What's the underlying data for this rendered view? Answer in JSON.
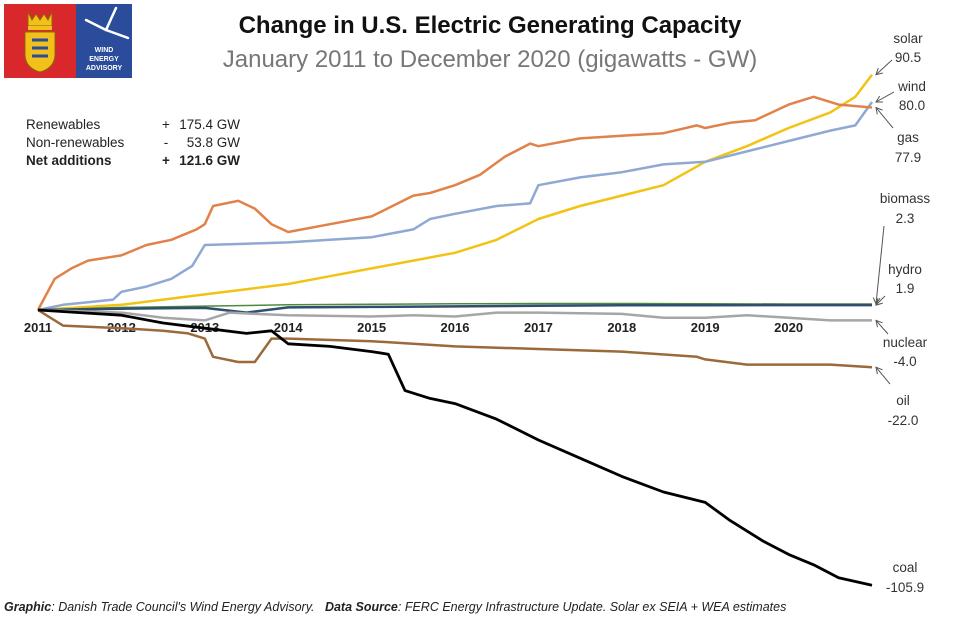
{
  "header": {
    "title": "Change in U.S. Electric Generating Capacity",
    "subtitle": "January 2011 to December 2020 (gigawatts - GW)"
  },
  "logo": {
    "text_lines": [
      "WIND",
      "ENERGY",
      "ADVISORY"
    ]
  },
  "summary": [
    {
      "label": "Renewables",
      "sign": "+",
      "value": "175.4 GW"
    },
    {
      "label": "Non-renewables",
      "sign": "-",
      "value": "53.8 GW"
    },
    {
      "label": "Net additions",
      "sign": "+",
      "value": "121.6  GW"
    }
  ],
  "footer": {
    "graphic_label": "Graphic",
    "graphic_text": ": Danish Trade Council's Wind Energy Advisory.",
    "source_label": "Data Source",
    "source_text": ": FERC Energy Infrastructure Update. Solar ex SEIA + WEA estimates"
  },
  "chart_data": {
    "type": "line",
    "title": "Change in U.S. Electric Generating Capacity",
    "subtitle": "January 2011 to December 2020 (gigawatts - GW)",
    "x_ticks": [
      "2011",
      "2012",
      "2013",
      "2014",
      "2015",
      "2016",
      "2017",
      "2018",
      "2019",
      "2020"
    ],
    "xlim": [
      2011.0,
      2021.0
    ],
    "ylim": [
      -110,
      95
    ],
    "grid": false,
    "legend": "direct labels at right end",
    "series": [
      {
        "name": "solar",
        "end_label": "90.5",
        "color": "#f2c314",
        "width": 2.5,
        "points": [
          [
            2011.0,
            0
          ],
          [
            2011.5,
            1
          ],
          [
            2012.0,
            2
          ],
          [
            2012.5,
            4
          ],
          [
            2013.0,
            6
          ],
          [
            2013.5,
            8
          ],
          [
            2014.0,
            10
          ],
          [
            2014.5,
            13
          ],
          [
            2015.0,
            16
          ],
          [
            2015.5,
            19
          ],
          [
            2016.0,
            22
          ],
          [
            2016.5,
            27
          ],
          [
            2017.0,
            35
          ],
          [
            2017.5,
            40
          ],
          [
            2018.0,
            44
          ],
          [
            2018.5,
            48
          ],
          [
            2019.0,
            57
          ],
          [
            2019.5,
            63
          ],
          [
            2020.0,
            70
          ],
          [
            2020.5,
            76
          ],
          [
            2020.8,
            82
          ],
          [
            2021.0,
            90.5
          ]
        ]
      },
      {
        "name": "wind",
        "end_label": "80.0",
        "color": "#8fa9d2",
        "width": 2.5,
        "points": [
          [
            2011.0,
            0
          ],
          [
            2011.3,
            2
          ],
          [
            2011.6,
            3
          ],
          [
            2011.9,
            4
          ],
          [
            2012.0,
            7
          ],
          [
            2012.3,
            9
          ],
          [
            2012.6,
            12
          ],
          [
            2012.85,
            17
          ],
          [
            2013.0,
            25
          ],
          [
            2013.5,
            25.5
          ],
          [
            2014.0,
            26
          ],
          [
            2014.5,
            27
          ],
          [
            2015.0,
            28
          ],
          [
            2015.5,
            31
          ],
          [
            2015.7,
            35
          ],
          [
            2016.0,
            37
          ],
          [
            2016.5,
            40
          ],
          [
            2016.9,
            41
          ],
          [
            2017.0,
            48
          ],
          [
            2017.5,
            51
          ],
          [
            2018.0,
            53
          ],
          [
            2018.5,
            56
          ],
          [
            2019.0,
            57
          ],
          [
            2019.5,
            61
          ],
          [
            2020.0,
            65
          ],
          [
            2020.5,
            69
          ],
          [
            2020.8,
            71
          ],
          [
            2021.0,
            80
          ]
        ]
      },
      {
        "name": "gas",
        "end_label": "77.9",
        "color": "#e1824a",
        "width": 2.5,
        "points": [
          [
            2011.0,
            0
          ],
          [
            2011.2,
            12
          ],
          [
            2011.4,
            16
          ],
          [
            2011.6,
            19
          ],
          [
            2011.8,
            20
          ],
          [
            2012.0,
            21
          ],
          [
            2012.3,
            25
          ],
          [
            2012.6,
            27
          ],
          [
            2012.9,
            31
          ],
          [
            2013.0,
            33
          ],
          [
            2013.1,
            40
          ],
          [
            2013.4,
            42
          ],
          [
            2013.6,
            39
          ],
          [
            2013.8,
            33
          ],
          [
            2014.0,
            30
          ],
          [
            2014.5,
            33
          ],
          [
            2015.0,
            36
          ],
          [
            2015.5,
            44
          ],
          [
            2015.7,
            45
          ],
          [
            2016.0,
            48
          ],
          [
            2016.3,
            52
          ],
          [
            2016.6,
            59
          ],
          [
            2016.9,
            64
          ],
          [
            2017.0,
            63
          ],
          [
            2017.5,
            66
          ],
          [
            2018.0,
            67
          ],
          [
            2018.5,
            68
          ],
          [
            2018.9,
            71
          ],
          [
            2019.0,
            70
          ],
          [
            2019.3,
            72
          ],
          [
            2019.6,
            73
          ],
          [
            2020.0,
            79
          ],
          [
            2020.3,
            82
          ],
          [
            2020.6,
            79
          ],
          [
            2021.0,
            77.9
          ]
        ]
      },
      {
        "name": "biomass",
        "end_label": "2.3",
        "color": "#4e8a3c",
        "width": 1.5,
        "points": [
          [
            2011.0,
            0
          ],
          [
            2012.0,
            1
          ],
          [
            2013.0,
            1.5
          ],
          [
            2014.0,
            2
          ],
          [
            2015.0,
            2.2
          ],
          [
            2016.0,
            2.4
          ],
          [
            2017.0,
            2.5
          ],
          [
            2018.0,
            2.5
          ],
          [
            2019.0,
            2.4
          ],
          [
            2020.0,
            2.3
          ],
          [
            2021.0,
            2.3
          ]
        ]
      },
      {
        "name": "hydro",
        "end_label": "1.9",
        "color": "#2f4f6f",
        "width": 2.5,
        "points": [
          [
            2011.0,
            0
          ],
          [
            2012.0,
            0.5
          ],
          [
            2013.0,
            0.8
          ],
          [
            2013.5,
            -1
          ],
          [
            2014.0,
            1
          ],
          [
            2015.0,
            1.2
          ],
          [
            2016.0,
            1.4
          ],
          [
            2017.0,
            1.6
          ],
          [
            2018.0,
            1.8
          ],
          [
            2019.0,
            1.8
          ],
          [
            2020.0,
            1.9
          ],
          [
            2021.0,
            1.9
          ]
        ]
      },
      {
        "name": "nuclear",
        "end_label": "-4.0",
        "color": "#a6a6a6",
        "width": 2.5,
        "points": [
          [
            2011.0,
            0
          ],
          [
            2011.5,
            -0.5
          ],
          [
            2012.0,
            -1
          ],
          [
            2012.5,
            -3
          ],
          [
            2013.0,
            -4
          ],
          [
            2013.3,
            -1
          ],
          [
            2013.6,
            -1.5
          ],
          [
            2014.0,
            -2
          ],
          [
            2015.0,
            -2.5
          ],
          [
            2015.5,
            -2
          ],
          [
            2016.0,
            -2.5
          ],
          [
            2016.5,
            -1
          ],
          [
            2017.0,
            -1
          ],
          [
            2018.0,
            -1.5
          ],
          [
            2018.5,
            -3
          ],
          [
            2019.0,
            -3
          ],
          [
            2019.5,
            -2
          ],
          [
            2020.0,
            -3
          ],
          [
            2020.5,
            -4
          ],
          [
            2021.0,
            -4.0
          ]
        ]
      },
      {
        "name": "oil",
        "end_label": "-22.0",
        "color": "#9a6a3b",
        "width": 2.5,
        "points": [
          [
            2011.0,
            0
          ],
          [
            2011.3,
            -6
          ],
          [
            2012.0,
            -7
          ],
          [
            2012.5,
            -8
          ],
          [
            2012.8,
            -9
          ],
          [
            2013.0,
            -11
          ],
          [
            2013.1,
            -18
          ],
          [
            2013.4,
            -20
          ],
          [
            2013.6,
            -20
          ],
          [
            2013.8,
            -11
          ],
          [
            2014.0,
            -11
          ],
          [
            2015.0,
            -12
          ],
          [
            2016.0,
            -14
          ],
          [
            2017.0,
            -15
          ],
          [
            2018.0,
            -16
          ],
          [
            2018.9,
            -18
          ],
          [
            2019.0,
            -19
          ],
          [
            2019.5,
            -21
          ],
          [
            2020.0,
            -21
          ],
          [
            2020.5,
            -21
          ],
          [
            2021.0,
            -22.0
          ]
        ]
      },
      {
        "name": "coal",
        "end_label": "-105.9",
        "color": "#000000",
        "width": 2.8,
        "points": [
          [
            2011.0,
            0
          ],
          [
            2011.5,
            -1
          ],
          [
            2012.0,
            -2
          ],
          [
            2012.5,
            -5
          ],
          [
            2013.0,
            -7
          ],
          [
            2013.5,
            -9
          ],
          [
            2013.8,
            -8
          ],
          [
            2014.0,
            -13
          ],
          [
            2014.5,
            -14
          ],
          [
            2015.0,
            -16
          ],
          [
            2015.2,
            -17
          ],
          [
            2015.4,
            -31
          ],
          [
            2015.7,
            -34
          ],
          [
            2016.0,
            -36
          ],
          [
            2016.5,
            -42
          ],
          [
            2017.0,
            -50
          ],
          [
            2017.5,
            -57
          ],
          [
            2018.0,
            -64
          ],
          [
            2018.5,
            -70
          ],
          [
            2019.0,
            -74
          ],
          [
            2019.3,
            -81
          ],
          [
            2019.7,
            -89
          ],
          [
            2020.0,
            -94
          ],
          [
            2020.3,
            -98
          ],
          [
            2020.6,
            -103
          ],
          [
            2021.0,
            -105.9
          ]
        ]
      }
    ]
  }
}
